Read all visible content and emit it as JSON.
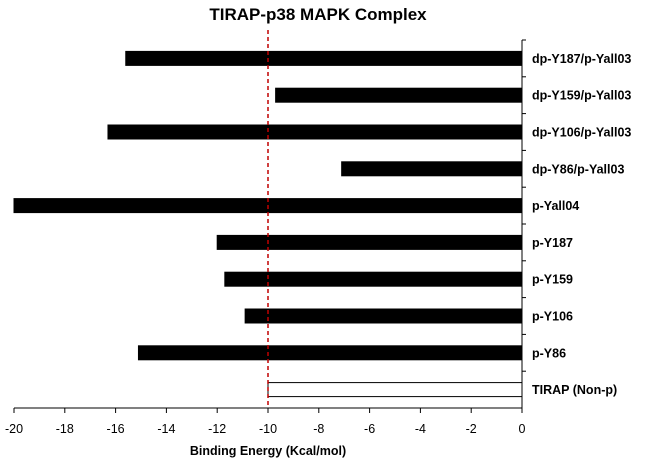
{
  "chart_data": {
    "type": "bar",
    "orientation": "horizontal",
    "title": "TIRAP-p38 MAPK Complex",
    "xlabel": "Binding Energy (Kcal/mol)",
    "ylabel": "",
    "xlim": [
      -20,
      0
    ],
    "xticks": [
      "-20",
      "-18",
      "-16",
      "-14",
      "-12",
      "-10",
      "-8",
      "-6",
      "-4",
      "-2",
      "0"
    ],
    "reference_line": {
      "value": -10,
      "style": "dashed",
      "color": "#c00000"
    },
    "categories": [
      "dp-Y187/p-Yall03",
      "dp-Y159/p-Yall03",
      "dp-Y106/p-Yall03",
      "dp-Y86/p-Yall03",
      "p-Yall04",
      "p-Y187",
      "p-Y159",
      "p-Y106",
      "p-Y86",
      "TIRAP (Non-p)"
    ],
    "values": [
      -15.6,
      -9.7,
      -16.3,
      -7.1,
      -20.0,
      -12.0,
      -11.7,
      -10.9,
      -15.1,
      -10.0
    ],
    "bar_fill": [
      "#000000",
      "#000000",
      "#000000",
      "#000000",
      "#000000",
      "#000000",
      "#000000",
      "#000000",
      "#000000",
      "#ffffff"
    ],
    "grid": false,
    "legend": "none"
  }
}
